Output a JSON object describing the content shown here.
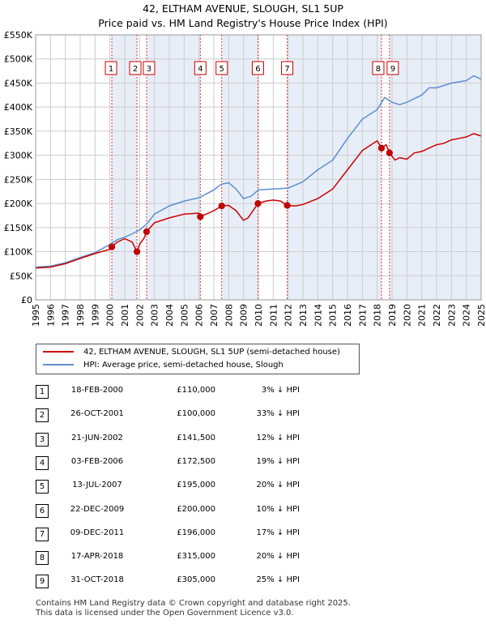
{
  "title": "42, ELTHAM AVENUE, SLOUGH, SL1 5UP",
  "subtitle": "Price paid vs. HM Land Registry's House Price Index (HPI)",
  "legend": {
    "property": "42, ELTHAM AVENUE, SLOUGH, SL1 5UP (semi-detached house)",
    "hpi": "HPI: Average price, semi-detached house, Slough"
  },
  "colors": {
    "property": "#cc0000",
    "hpi": "#5b8fd0",
    "shade": "#e8eef8",
    "grid": "#cccccc",
    "marker_line": "#dd3333"
  },
  "chart_data": {
    "type": "line",
    "xlim": [
      1995,
      2025
    ],
    "ylim": [
      0,
      550000
    ],
    "y_ticks": [
      0,
      50000,
      100000,
      150000,
      200000,
      250000,
      300000,
      350000,
      400000,
      450000,
      500000,
      550000
    ],
    "y_tick_labels": [
      "£0",
      "£50K",
      "£100K",
      "£150K",
      "£200K",
      "£250K",
      "£300K",
      "£350K",
      "£400K",
      "£450K",
      "£500K",
      "£550K"
    ],
    "x_ticks": [
      1995,
      1996,
      1997,
      1998,
      1999,
      2000,
      2001,
      2002,
      2003,
      2004,
      2005,
      2006,
      2007,
      2008,
      2009,
      2010,
      2011,
      2012,
      2013,
      2014,
      2015,
      2016,
      2017,
      2018,
      2019,
      2020,
      2021,
      2022,
      2023,
      2024,
      2025
    ],
    "x_tick_labels": [
      "1995",
      "1996",
      "1997",
      "1998",
      "1999",
      "2000",
      "2001",
      "2002",
      "2003",
      "2004",
      "2005",
      "2006",
      "2007",
      "2008",
      "2009",
      "2010",
      "2011",
      "2012",
      "2013",
      "2014",
      "2015",
      "2016",
      "2017",
      "2018",
      "2019",
      "2020",
      "2021",
      "2022",
      "2023",
      "2024",
      "2025"
    ],
    "grid": true,
    "legend_position": "below chart",
    "shaded_periods": [
      [
        2000.13,
        2001.82
      ],
      [
        2002.47,
        2006.09
      ],
      [
        2007.53,
        2009.97
      ],
      [
        2011.94,
        2018.29
      ],
      [
        2018.83,
        2025
      ]
    ],
    "series": [
      {
        "name": "HPI: Average price, semi-detached house, Slough",
        "x": [
          1995,
          1996,
          1997,
          1998,
          1999,
          2000,
          2000.5,
          2001,
          2001.5,
          2002,
          2002.5,
          2003,
          2004,
          2005,
          2006,
          2007,
          2007.5,
          2008,
          2008.5,
          2009,
          2009.5,
          2010,
          2011,
          2012,
          2013,
          2014,
          2015,
          2016,
          2016.5,
          2017,
          2018,
          2018.5,
          2019,
          2019.5,
          2020,
          2021,
          2021.5,
          2022,
          2022.5,
          2023,
          2024,
          2024.5,
          2025
        ],
        "values": [
          68000,
          70000,
          77000,
          88000,
          98000,
          115000,
          125000,
          130000,
          137000,
          145000,
          158000,
          178000,
          195000,
          205000,
          212000,
          228000,
          240000,
          243000,
          230000,
          210000,
          215000,
          228000,
          230000,
          232000,
          245000,
          270000,
          290000,
          335000,
          355000,
          375000,
          395000,
          420000,
          410000,
          405000,
          410000,
          425000,
          440000,
          440000,
          445000,
          450000,
          455000,
          465000,
          458000
        ]
      },
      {
        "name": "42, ELTHAM AVENUE, SLOUGH, SL1 5UP (semi-detached house)",
        "x": [
          1995,
          1996,
          1997,
          1998,
          1999,
          2000,
          2000.13,
          2000.5,
          2001,
          2001.5,
          2001.82,
          2002,
          2002.3,
          2002.47,
          2003,
          2004,
          2005,
          2006,
          2006.09,
          2007,
          2007.53,
          2008,
          2008.5,
          2009,
          2009.3,
          2009.97,
          2010.5,
          2011,
          2011.5,
          2011.94,
          2012.5,
          2013,
          2014,
          2015,
          2016,
          2016.5,
          2017,
          2017.5,
          2018,
          2018.29,
          2018.6,
          2018.83,
          2019.2,
          2019.5,
          2020,
          2020.5,
          2021,
          2021.5,
          2022,
          2022.5,
          2023,
          2023.5,
          2024,
          2024.5,
          2025
        ],
        "values": [
          66000,
          68000,
          75000,
          86000,
          96000,
          105000,
          110000,
          120000,
          127000,
          120000,
          100000,
          115000,
          128000,
          141500,
          160000,
          170000,
          178000,
          180000,
          172500,
          185000,
          195000,
          196000,
          185000,
          165000,
          170000,
          200000,
          205000,
          207000,
          205000,
          196000,
          195000,
          198000,
          210000,
          230000,
          270000,
          290000,
          310000,
          320000,
          330000,
          315000,
          322000,
          305000,
          290000,
          295000,
          292000,
          305000,
          308000,
          315000,
          322000,
          325000,
          332000,
          335000,
          338000,
          345000,
          340000
        ]
      }
    ],
    "sales": [
      {
        "label": "1",
        "x": 2000.13,
        "value": 110000
      },
      {
        "label": "2",
        "x": 2001.82,
        "value": 100000
      },
      {
        "label": "3",
        "x": 2002.47,
        "value": 141500
      },
      {
        "label": "4",
        "x": 2006.09,
        "value": 172500
      },
      {
        "label": "5",
        "x": 2007.53,
        "value": 195000
      },
      {
        "label": "6",
        "x": 2009.97,
        "value": 200000
      },
      {
        "label": "7",
        "x": 2011.94,
        "value": 196000
      },
      {
        "label": "8",
        "x": 2018.29,
        "value": 315000
      },
      {
        "label": "9",
        "x": 2018.83,
        "value": 305000
      }
    ]
  },
  "sales_table": [
    {
      "num": "1",
      "date": "18-FEB-2000",
      "price": "£110,000",
      "hpi": "3% ↓ HPI"
    },
    {
      "num": "2",
      "date": "26-OCT-2001",
      "price": "£100,000",
      "hpi": "33% ↓ HPI"
    },
    {
      "num": "3",
      "date": "21-JUN-2002",
      "price": "£141,500",
      "hpi": "12% ↓ HPI"
    },
    {
      "num": "4",
      "date": "03-FEB-2006",
      "price": "£172,500",
      "hpi": "19% ↓ HPI"
    },
    {
      "num": "5",
      "date": "13-JUL-2007",
      "price": "£195,000",
      "hpi": "20% ↓ HPI"
    },
    {
      "num": "6",
      "date": "22-DEC-2009",
      "price": "£200,000",
      "hpi": "10% ↓ HPI"
    },
    {
      "num": "7",
      "date": "09-DEC-2011",
      "price": "£196,000",
      "hpi": "17% ↓ HPI"
    },
    {
      "num": "8",
      "date": "17-APR-2018",
      "price": "£315,000",
      "hpi": "20% ↓ HPI"
    },
    {
      "num": "9",
      "date": "31-OCT-2018",
      "price": "£305,000",
      "hpi": "25% ↓ HPI"
    }
  ],
  "footer": {
    "line1": "Contains HM Land Registry data © Crown copyright and database right 2025.",
    "line2": "This data is licensed under the Open Government Licence v3.0."
  }
}
